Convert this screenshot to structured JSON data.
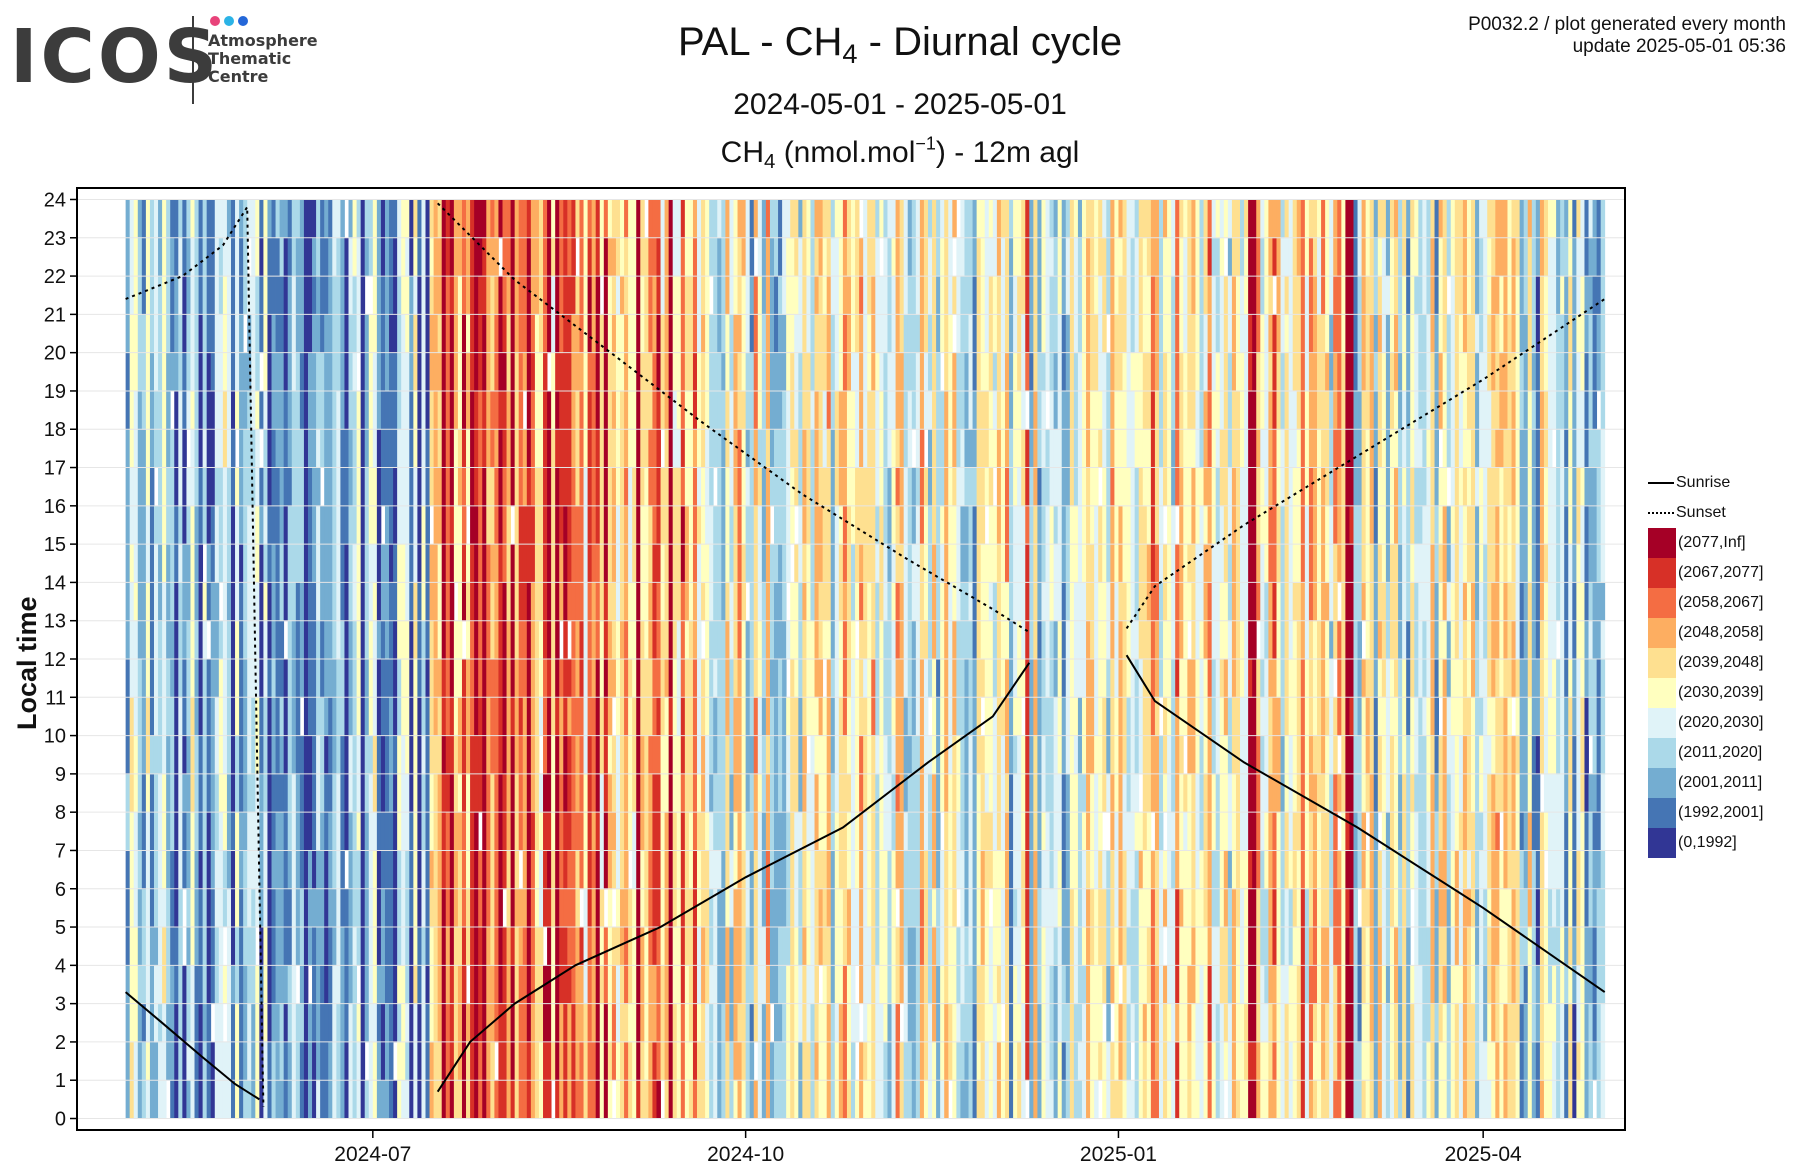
{
  "logo": {
    "wordmark": "ICOS",
    "subtitle_lines": [
      "Atmosphere",
      "Thematic",
      "Centre"
    ],
    "dot_colors": [
      "#e8437a",
      "#2bb3e6",
      "#2467d8"
    ]
  },
  "header": {
    "title_pre": "PAL - CH",
    "title_sub": "4",
    "title_post": " - Diurnal cycle",
    "date_range": "2024-05-01 - 2025-05-01",
    "subtitle_pre": "CH",
    "subtitle_sub": "4",
    "subtitle_mid": " (nmol.mol",
    "subtitle_sup": "−1",
    "subtitle_post": ") - 12m agl",
    "plot_info": "P0032.2 / plot generated every month",
    "update": "update  2025-05-01 05:36"
  },
  "chart_data": {
    "type": "heatmap",
    "ylabel": "Local time",
    "xlabel": "",
    "x_ticks": [
      "2024-07",
      "2024-10",
      "2025-01",
      "2025-04"
    ],
    "y_ticks": [
      0,
      1,
      2,
      3,
      4,
      5,
      6,
      7,
      8,
      9,
      10,
      11,
      12,
      13,
      14,
      15,
      16,
      17,
      18,
      19,
      20,
      21,
      22,
      23,
      24
    ],
    "xlim": [
      "2024-04-19",
      "2025-05-06"
    ],
    "ylim": [
      -0.3,
      24.3
    ],
    "grid": true,
    "legend_position": "right",
    "bins": [
      {
        "label": "(2077,Inf]",
        "color": "#a50026"
      },
      {
        "label": "(2067,2077]",
        "color": "#d73027"
      },
      {
        "label": "(2058,2067]",
        "color": "#f46d43"
      },
      {
        "label": "(2048,2058]",
        "color": "#fdae61"
      },
      {
        "label": "(2039,2048]",
        "color": "#fee090"
      },
      {
        "label": "(2030,2039]",
        "color": "#ffffbf"
      },
      {
        "label": "(2020,2030]",
        "color": "#e0f3f8"
      },
      {
        "label": "(2011,2020]",
        "color": "#abd9e9"
      },
      {
        "label": "(2001,2011]",
        "color": "#74add1"
      },
      {
        "label": "(1992,2001]",
        "color": "#4575b4"
      },
      {
        "label": "(0,1992]",
        "color": "#313695"
      }
    ],
    "level_by_date": [
      {
        "from": "2024-05-01",
        "to": "2024-05-25",
        "level": 7.2
      },
      {
        "from": "2024-05-25",
        "to": "2024-06-20",
        "level": 7.7
      },
      {
        "from": "2024-06-20",
        "to": "2024-07-15",
        "level": 7.3
      },
      {
        "from": "2024-07-15",
        "to": "2024-07-25",
        "level": 2.5
      },
      {
        "from": "2024-07-25",
        "to": "2024-08-10",
        "level": 2.3
      },
      {
        "from": "2024-08-10",
        "to": "2024-09-20",
        "level": 2.8
      },
      {
        "from": "2024-09-20",
        "to": "2024-10-20",
        "level": 5.4
      },
      {
        "from": "2024-10-20",
        "to": "2024-11-25",
        "level": 5.1
      },
      {
        "from": "2024-11-25",
        "to": "2024-12-20",
        "level": 6.0
      },
      {
        "from": "2024-12-20",
        "to": "2025-01-20",
        "level": 4.6
      },
      {
        "from": "2025-01-20",
        "to": "2025-02-25",
        "level": 4.4
      },
      {
        "from": "2025-02-25",
        "to": "2025-04-05",
        "level": 5.4
      },
      {
        "from": "2025-04-05",
        "to": "2025-05-01",
        "level": 6.1
      }
    ],
    "strong_columns": [
      {
        "date": "2024-07-28",
        "level": 0
      },
      {
        "date": "2024-08-04",
        "level": 0
      },
      {
        "date": "2024-08-13",
        "level": 0
      },
      {
        "date": "2024-08-15",
        "level": 0
      },
      {
        "date": "2024-09-04",
        "level": 0
      },
      {
        "date": "2024-09-12",
        "level": 0
      },
      {
        "date": "2024-12-09",
        "level": 1
      },
      {
        "date": "2025-02-02",
        "level": 0
      },
      {
        "date": "2025-02-03",
        "level": 0
      },
      {
        "date": "2025-02-26",
        "level": 0
      },
      {
        "date": "2025-02-27",
        "level": 0
      },
      {
        "date": "2024-06-14",
        "level": 10
      },
      {
        "date": "2024-06-28",
        "level": 10
      }
    ],
    "series": [
      {
        "name": "Sunrise",
        "style": "solid",
        "segments": [
          {
            "x": [
              "2024-05-01",
              "2024-05-10",
              "2024-05-20",
              "2024-05-28",
              "2024-06-03"
            ],
            "y": [
              3.3,
              2.5,
              1.6,
              0.9,
              0.5
            ]
          },
          {
            "x": [
              "2024-07-17",
              "2024-07-25",
              "2024-08-05",
              "2024-08-20",
              "2024-09-10",
              "2024-10-01",
              "2024-10-25",
              "2024-11-15",
              "2024-12-01",
              "2024-12-10"
            ],
            "y": [
              0.7,
              2.0,
              3.0,
              4.0,
              5.0,
              6.3,
              7.6,
              9.3,
              10.5,
              11.9
            ]
          },
          {
            "x": [
              "2025-01-03",
              "2025-01-10",
              "2025-02-01",
              "2025-03-01",
              "2025-04-01",
              "2025-05-01"
            ],
            "y": [
              12.1,
              10.9,
              9.3,
              7.6,
              5.5,
              3.3
            ]
          }
        ]
      },
      {
        "name": "Sunset",
        "style": "dotted",
        "segments": [
          {
            "x": [
              "2024-05-01",
              "2024-05-15",
              "2024-05-25",
              "2024-05-31",
              "2024-06-04"
            ],
            "y": [
              21.4,
              22.0,
              22.8,
              23.8,
              0.3
            ]
          },
          {
            "x": [
              "2024-07-17",
              "2024-08-05",
              "2024-08-25",
              "2024-09-20",
              "2024-10-15",
              "2024-11-10",
              "2024-12-01",
              "2024-12-10"
            ],
            "y": [
              23.9,
              21.9,
              20.3,
              18.2,
              16.3,
              14.6,
              13.3,
              12.7
            ]
          },
          {
            "x": [
              "2025-01-03",
              "2025-01-10",
              "2025-02-01",
              "2025-03-01",
              "2025-04-01",
              "2025-05-01"
            ],
            "y": [
              12.8,
              13.9,
              15.5,
              17.3,
              19.3,
              21.4
            ]
          }
        ]
      }
    ]
  }
}
